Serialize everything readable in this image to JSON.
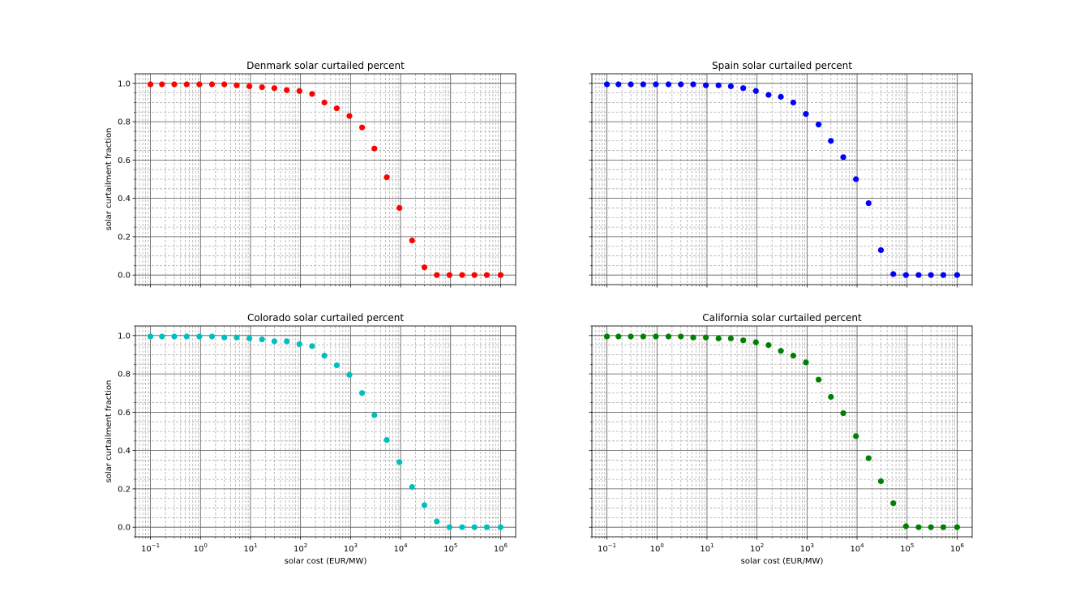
{
  "chart_data": [
    {
      "type": "scatter",
      "title": "Denmark solar curtailed percent",
      "xlabel": "",
      "ylabel": "solar curtailment fraction",
      "xscale": "log",
      "xlim": [
        0.05,
        2000000
      ],
      "ylim": [
        -0.05,
        1.05
      ],
      "grid": true,
      "color": "#ff0000",
      "x": [
        0.1,
        0.17,
        0.3,
        0.53,
        0.95,
        1.7,
        3,
        5.3,
        9.5,
        17,
        30,
        53,
        95,
        170,
        300,
        530,
        950,
        1700,
        3000,
        5300,
        9500,
        17000,
        30000,
        53000,
        95000,
        170000,
        300000,
        530000,
        1000000
      ],
      "y": [
        0.995,
        0.995,
        0.995,
        0.995,
        0.995,
        0.995,
        0.995,
        0.99,
        0.985,
        0.98,
        0.975,
        0.965,
        0.96,
        0.945,
        0.9,
        0.87,
        0.83,
        0.77,
        0.66,
        0.51,
        0.35,
        0.18,
        0.04,
        0.0,
        0.0,
        0.0,
        0.0,
        0.0,
        0.0
      ]
    },
    {
      "type": "scatter",
      "title": "Spain solar curtailed percent",
      "xlabel": "",
      "ylabel": "",
      "xscale": "log",
      "xlim": [
        0.05,
        2000000
      ],
      "ylim": [
        -0.05,
        1.05
      ],
      "grid": true,
      "color": "#0000ff",
      "x": [
        0.1,
        0.17,
        0.3,
        0.53,
        0.95,
        1.7,
        3,
        5.3,
        9.5,
        17,
        30,
        53,
        95,
        170,
        300,
        530,
        950,
        1700,
        3000,
        5300,
        9500,
        17000,
        30000,
        53000,
        95000,
        170000,
        300000,
        530000,
        1000000
      ],
      "y": [
        0.995,
        0.995,
        0.995,
        0.995,
        0.995,
        0.995,
        0.995,
        0.995,
        0.99,
        0.99,
        0.985,
        0.975,
        0.96,
        0.94,
        0.93,
        0.9,
        0.84,
        0.785,
        0.7,
        0.615,
        0.5,
        0.375,
        0.13,
        0.005,
        0.0,
        0.0,
        0.0,
        0.0,
        0.0
      ]
    },
    {
      "type": "scatter",
      "title": "Colorado solar curtailed percent",
      "xlabel": "solar cost (EUR/MW)",
      "ylabel": "solar curtailment fraction",
      "xscale": "log",
      "xlim": [
        0.05,
        2000000
      ],
      "ylim": [
        -0.05,
        1.05
      ],
      "grid": true,
      "color": "#00bfbf",
      "x": [
        0.1,
        0.17,
        0.3,
        0.53,
        0.95,
        1.7,
        3,
        5.3,
        9.5,
        17,
        30,
        53,
        95,
        170,
        300,
        530,
        950,
        1700,
        3000,
        5300,
        9500,
        17000,
        30000,
        53000,
        95000,
        170000,
        300000,
        530000,
        1000000
      ],
      "y": [
        0.995,
        0.995,
        0.995,
        0.995,
        0.995,
        0.995,
        0.99,
        0.99,
        0.985,
        0.98,
        0.97,
        0.97,
        0.955,
        0.945,
        0.895,
        0.845,
        0.795,
        0.7,
        0.585,
        0.455,
        0.34,
        0.21,
        0.115,
        0.03,
        0.0,
        0.0,
        0.0,
        0.0,
        0.0
      ]
    },
    {
      "type": "scatter",
      "title": "California solar curtailed percent",
      "xlabel": "solar cost (EUR/MW)",
      "ylabel": "",
      "xscale": "log",
      "xlim": [
        0.05,
        2000000
      ],
      "ylim": [
        -0.05,
        1.05
      ],
      "grid": true,
      "color": "#008000",
      "x": [
        0.1,
        0.17,
        0.3,
        0.53,
        0.95,
        1.7,
        3,
        5.3,
        9.5,
        17,
        30,
        53,
        95,
        170,
        300,
        530,
        950,
        1700,
        3000,
        5300,
        9500,
        17000,
        30000,
        53000,
        95000,
        170000,
        300000,
        530000,
        1000000
      ],
      "y": [
        0.995,
        0.995,
        0.995,
        0.995,
        0.995,
        0.995,
        0.995,
        0.99,
        0.99,
        0.985,
        0.985,
        0.975,
        0.965,
        0.95,
        0.92,
        0.895,
        0.86,
        0.77,
        0.68,
        0.595,
        0.475,
        0.36,
        0.24,
        0.125,
        0.005,
        0.0,
        0.0,
        0.0,
        0.0
      ]
    }
  ],
  "y_ticks": [
    {
      "value": 0.0,
      "label": "0.0"
    },
    {
      "value": 0.2,
      "label": "0.2"
    },
    {
      "value": 0.4,
      "label": "0.4"
    },
    {
      "value": 0.6,
      "label": "0.6"
    },
    {
      "value": 0.8,
      "label": "0.8"
    },
    {
      "value": 1.0,
      "label": "1.0"
    }
  ],
  "x_ticks": [
    {
      "value": 0.1,
      "base": "10",
      "exp": "−1"
    },
    {
      "value": 1,
      "base": "10",
      "exp": "0"
    },
    {
      "value": 10,
      "base": "10",
      "exp": "1"
    },
    {
      "value": 100,
      "base": "10",
      "exp": "2"
    },
    {
      "value": 1000,
      "base": "10",
      "exp": "3"
    },
    {
      "value": 10000,
      "base": "10",
      "exp": "4"
    },
    {
      "value": 100000,
      "base": "10",
      "exp": "5"
    },
    {
      "value": 1000000,
      "base": "10",
      "exp": "6"
    }
  ]
}
